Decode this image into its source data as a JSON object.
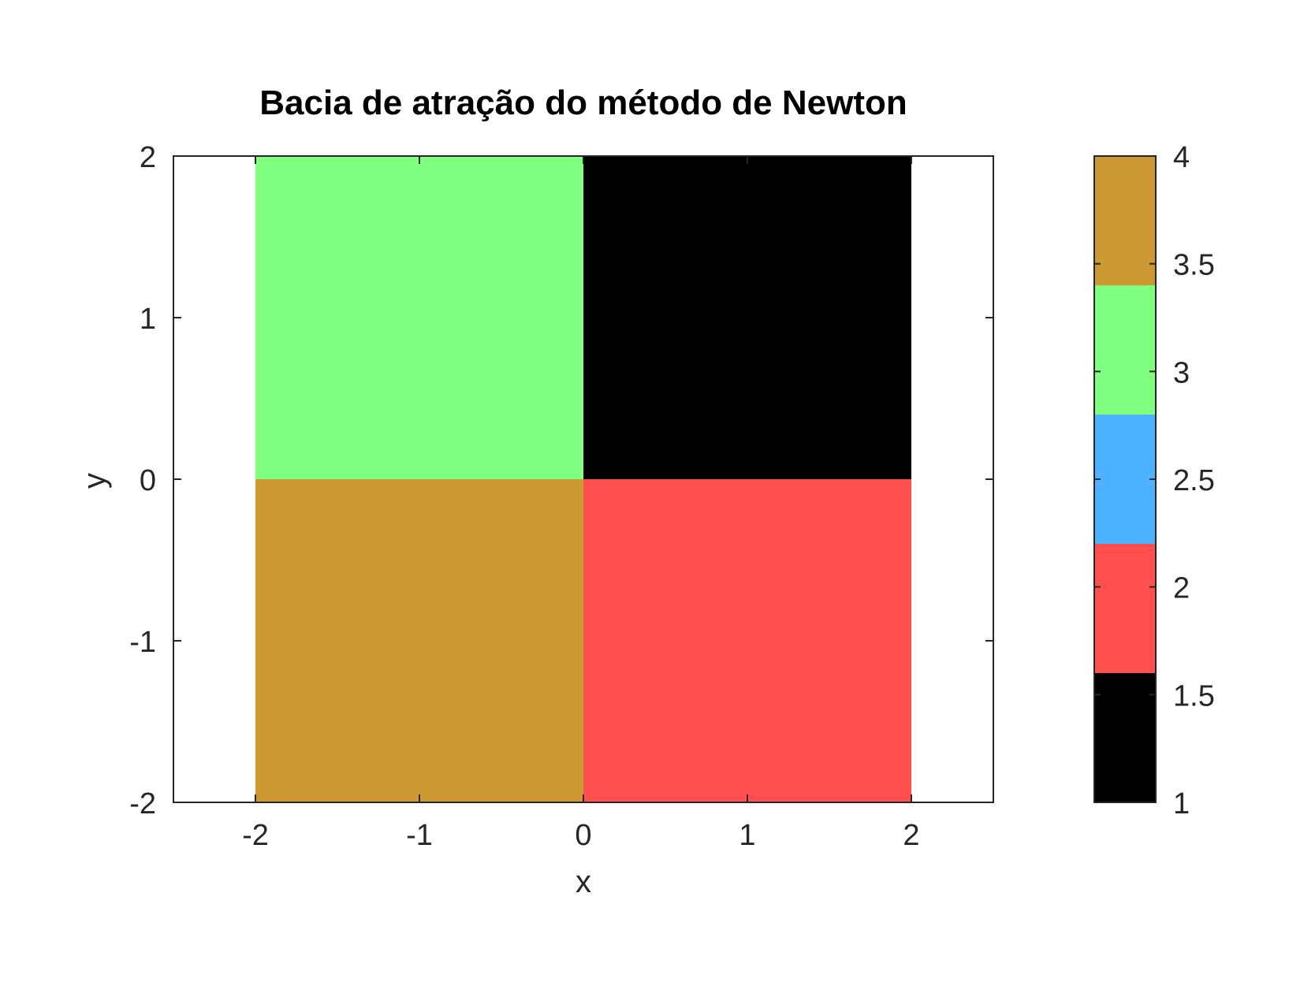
{
  "chart_data": {
    "type": "heatmap",
    "title": "Bacia de atração do método de Newton",
    "xlabel": "x",
    "ylabel": "y",
    "xlim": [
      -2.5,
      2.5
    ],
    "ylim": [
      -2,
      2
    ],
    "xticks": [
      -2,
      -1,
      0,
      1,
      2
    ],
    "xtick_labels": [
      "-2",
      "-1",
      "0",
      "1",
      "2"
    ],
    "yticks": [
      -2,
      -1,
      0,
      1,
      2
    ],
    "ytick_labels": [
      "-2",
      "-1",
      "0",
      "1",
      "2"
    ],
    "cells": [
      {
        "x0": -2,
        "x1": 0,
        "y0": 0,
        "y1": 2,
        "value": 3
      },
      {
        "x0": 0,
        "x1": 2,
        "y0": 0,
        "y1": 2,
        "value": 1
      },
      {
        "x0": -2,
        "x1": 0,
        "y0": -2,
        "y1": 0,
        "value": 4
      },
      {
        "x0": 0,
        "x1": 2,
        "y0": -2,
        "y1": 0,
        "value": 2
      }
    ],
    "colorbar": {
      "range": [
        1,
        4
      ],
      "ticks": [
        1,
        1.5,
        2,
        2.5,
        3,
        3.5,
        4
      ],
      "tick_labels": [
        "1",
        "1.5",
        "2",
        "2.5",
        "3",
        "3.5",
        "4"
      ],
      "bands": [
        {
          "from": 1,
          "to": 1.6,
          "color": "#000000"
        },
        {
          "from": 1.6,
          "to": 2.2,
          "color": "#ff4f4f"
        },
        {
          "from": 2.2,
          "to": 2.8,
          "color": "#4db2ff"
        },
        {
          "from": 2.8,
          "to": 3.4,
          "color": "#80ff80"
        },
        {
          "from": 3.4,
          "to": 4,
          "color": "#cc9933"
        }
      ]
    },
    "grid": false
  }
}
